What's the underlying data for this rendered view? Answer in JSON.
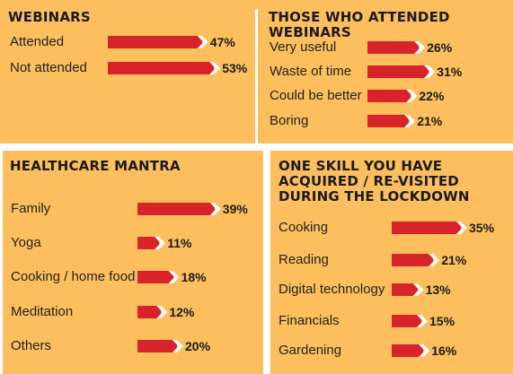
{
  "chart_data": [
    {
      "type": "bar",
      "title": "WEBINARS",
      "categories": [
        "Attended",
        "Not attended"
      ],
      "values": [
        47,
        53
      ],
      "unit": "%"
    },
    {
      "type": "bar",
      "title": "THOSE WHO ATTENDED WEBINARS",
      "categories": [
        "Very useful",
        "Waste of time",
        "Could be better",
        "Boring"
      ],
      "values": [
        26,
        31,
        22,
        21
      ],
      "unit": "%"
    },
    {
      "type": "bar",
      "title": "HEALTHCARE MANTRA",
      "categories": [
        "Family",
        "Yoga",
        "Cooking / home food",
        "Meditation",
        "Others"
      ],
      "values": [
        39,
        11,
        18,
        12,
        20
      ],
      "unit": "%"
    },
    {
      "type": "bar",
      "title": "ONE SKILL YOU HAVE ACQUIRED / RE-VISITED DURING THE LOCKDOWN",
      "categories": [
        "Cooking",
        "Reading",
        "Digital technology",
        "Financials",
        "Gardening"
      ],
      "values": [
        35,
        21,
        13,
        15,
        16
      ],
      "unit": "%"
    }
  ],
  "colors": {
    "panel": "#fdbf5d",
    "bar": "#d8232a",
    "text": "#1a1a1a"
  }
}
